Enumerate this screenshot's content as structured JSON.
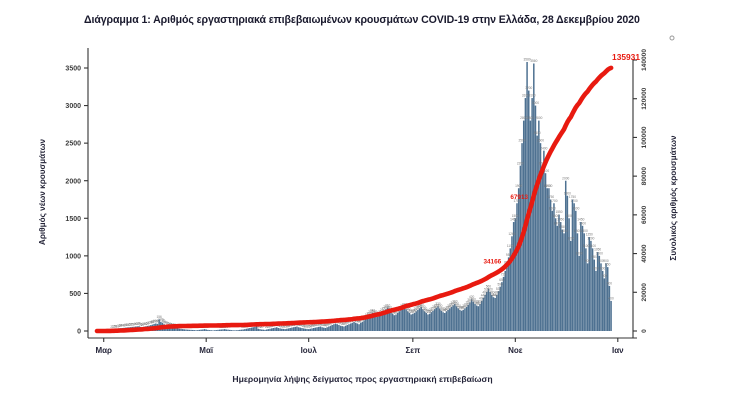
{
  "title": "Διάγραμμα 1: Αριθμός εργαστηριακά επιβεβαιωμένων κρουσμάτων COVID-19 στην Ελλάδα, 28 Δεκεμβρίου 2020",
  "chart_data": {
    "type": "bar",
    "combo": "daily bars (left axis) + cumulative red line (right axis)",
    "start_date": "2020-02-26",
    "end_date": "2020-12-28",
    "grid": false,
    "legend": "none",
    "x_axis": {
      "label": "Ημερομηνία λήψης δείγματος προς εργαστηριακή επιβεβαίωση",
      "ticks": [
        {
          "label": "Μαρ",
          "day_index": 4
        },
        {
          "label": "Μαϊ",
          "day_index": 65
        },
        {
          "label": "Ιουλ",
          "day_index": 126
        },
        {
          "label": "Σεπ",
          "day_index": 188
        },
        {
          "label": "Νοε",
          "day_index": 249
        },
        {
          "label": "Ιαν",
          "day_index": 310
        }
      ]
    },
    "left_axis": {
      "label": "Αριθμός νέων κρουσμάτων",
      "ticks": [
        0,
        500,
        1000,
        1500,
        2000,
        2500,
        3000,
        3500
      ],
      "range": [
        0,
        3500
      ]
    },
    "right_axis": {
      "label": "Συνολικός αριθμός κρουσμάτων",
      "ticks": [
        0,
        20000,
        40000,
        60000,
        80000,
        100000,
        120000,
        140000
      ],
      "range": [
        0,
        140000
      ]
    },
    "series": [
      {
        "name": "Αριθμός νέων κρουσμάτων",
        "type": "bar",
        "axis": "left",
        "color": "#4e7191",
        "values": [
          1,
          2,
          3,
          4,
          5,
          7,
          10,
          14,
          18,
          21,
          25,
          28,
          31,
          35,
          38,
          40,
          42,
          45,
          48,
          50,
          52,
          55,
          57,
          60,
          62,
          65,
          55,
          50,
          58,
          62,
          68,
          72,
          78,
          85,
          95,
          100,
          95,
          156,
          120,
          110,
          90,
          80,
          70,
          60,
          55,
          50,
          45,
          40,
          35,
          30,
          28,
          25,
          22,
          20,
          18,
          16,
          15,
          14,
          12,
          10,
          12,
          15,
          18,
          20,
          25,
          20,
          15,
          12,
          10,
          8,
          10,
          12,
          15,
          18,
          20,
          22,
          25,
          20,
          18,
          15,
          12,
          10,
          8,
          10,
          12,
          15,
          18,
          20,
          25,
          30,
          35,
          40,
          45,
          50,
          55,
          60,
          30,
          25,
          20,
          18,
          15,
          20,
          25,
          30,
          35,
          40,
          45,
          50,
          40,
          35,
          30,
          28,
          25,
          30,
          35,
          40,
          45,
          50,
          55,
          60,
          50,
          45,
          40,
          35,
          30,
          28,
          25,
          30,
          35,
          40,
          45,
          50,
          55,
          60,
          50,
          45,
          40,
          50,
          60,
          70,
          80,
          90,
          100,
          90,
          80,
          70,
          65,
          60,
          70,
          80,
          90,
          100,
          110,
          120,
          110,
          100,
          90,
          110,
          120,
          140,
          160,
          180,
          200,
          220,
          240,
          230,
          210,
          190,
          200,
          220,
          250,
          270,
          290,
          310,
          280,
          250,
          230,
          210,
          220,
          240,
          260,
          280,
          300,
          320,
          290,
          260,
          240,
          220,
          230,
          240,
          260,
          280,
          300,
          320,
          290,
          260,
          240,
          220,
          230,
          250,
          270,
          290,
          310,
          330,
          300,
          270,
          250,
          240,
          260,
          280,
          300,
          320,
          340,
          360,
          330,
          300,
          280,
          270,
          280,
          300,
          320,
          350,
          380,
          420,
          390,
          360,
          340,
          330,
          360,
          400,
          440,
          480,
          520,
          560,
          520,
          480,
          450,
          440,
          480,
          530,
          590,
          650,
          720,
          800,
          880,
          980,
          1100,
          1260,
          1450,
          1500,
          1700,
          1900,
          2200,
          2500,
          2800,
          3100,
          3580,
          3200,
          2800,
          3100,
          3560,
          3000,
          2600,
          2800,
          2500,
          2200,
          2400,
          2100,
          1900,
          1900,
          1750,
          1600,
          1700,
          1500,
          1400,
          1550,
          1450,
          1350,
          1300,
          2000,
          1800,
          1500,
          1200,
          1750,
          1700,
          1600,
          1300,
          1000,
          1450,
          1400,
          1300,
          1100,
          900,
          1250,
          1200,
          1100,
          950,
          800,
          1050,
          1000,
          900,
          800,
          700,
          900,
          850,
          600,
          400
        ]
      },
      {
        "name": "Συνολικός αριθμός κρουσμάτων",
        "type": "line",
        "axis": "right",
        "color": "#e81a10",
        "final_value": 135931
      }
    ],
    "annotations": [
      {
        "text": "135931",
        "day_index": 306,
        "role": "final"
      },
      {
        "text": "67913",
        "day_index": 259,
        "role": "milestone"
      },
      {
        "text": "34166",
        "day_index": 243,
        "role": "milestone"
      }
    ]
  }
}
